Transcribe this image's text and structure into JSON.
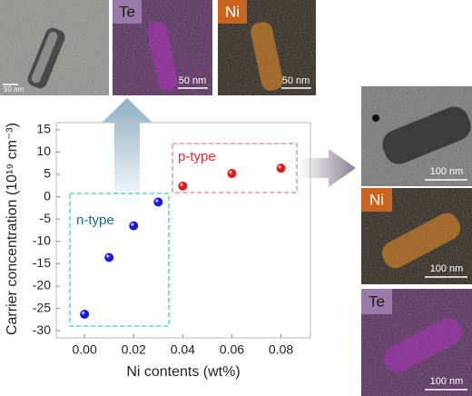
{
  "chart_data": {
    "type": "scatter",
    "y_label": "Carrier concentration (10¹⁹ cm⁻³)",
    "x_label": "Ni contents (wt%)",
    "x": [
      0.0,
      0.01,
      0.02,
      0.03,
      0.04,
      0.06,
      0.08
    ],
    "values": [
      -26.3,
      -13.6,
      -6.5,
      -1.2,
      2.4,
      5.2,
      6.4
    ],
    "point_colors": [
      "#1a1adc",
      "#1a1adc",
      "#1a1adc",
      "#1a1adc",
      "#e01a1a",
      "#e01a1a",
      "#e01a1a"
    ],
    "xlim": [
      -0.0115,
      0.092
    ],
    "ylim": [
      -31.6,
      16.6
    ],
    "xticks": [
      {
        "value": 0,
        "label": "0.00"
      },
      0.02,
      0.04,
      0.06,
      0.08
    ],
    "yticks": [
      -30,
      -25,
      -20,
      -15,
      -10,
      -5,
      0,
      5,
      10,
      15
    ],
    "annotations": {
      "n_type": "n-type",
      "p_type": "p-type"
    }
  },
  "images": {
    "top_tem": {
      "scale": "50 nm"
    },
    "top_te": {
      "label": "Te",
      "scale": "50 nm"
    },
    "top_ni": {
      "label": "Ni",
      "scale": "50 nm"
    },
    "right_tem": {
      "scale": "100 nm"
    },
    "right_ni": {
      "label": "Ni",
      "scale": "100 nm"
    },
    "right_te": {
      "label": "Te",
      "scale": "100 nm"
    }
  }
}
